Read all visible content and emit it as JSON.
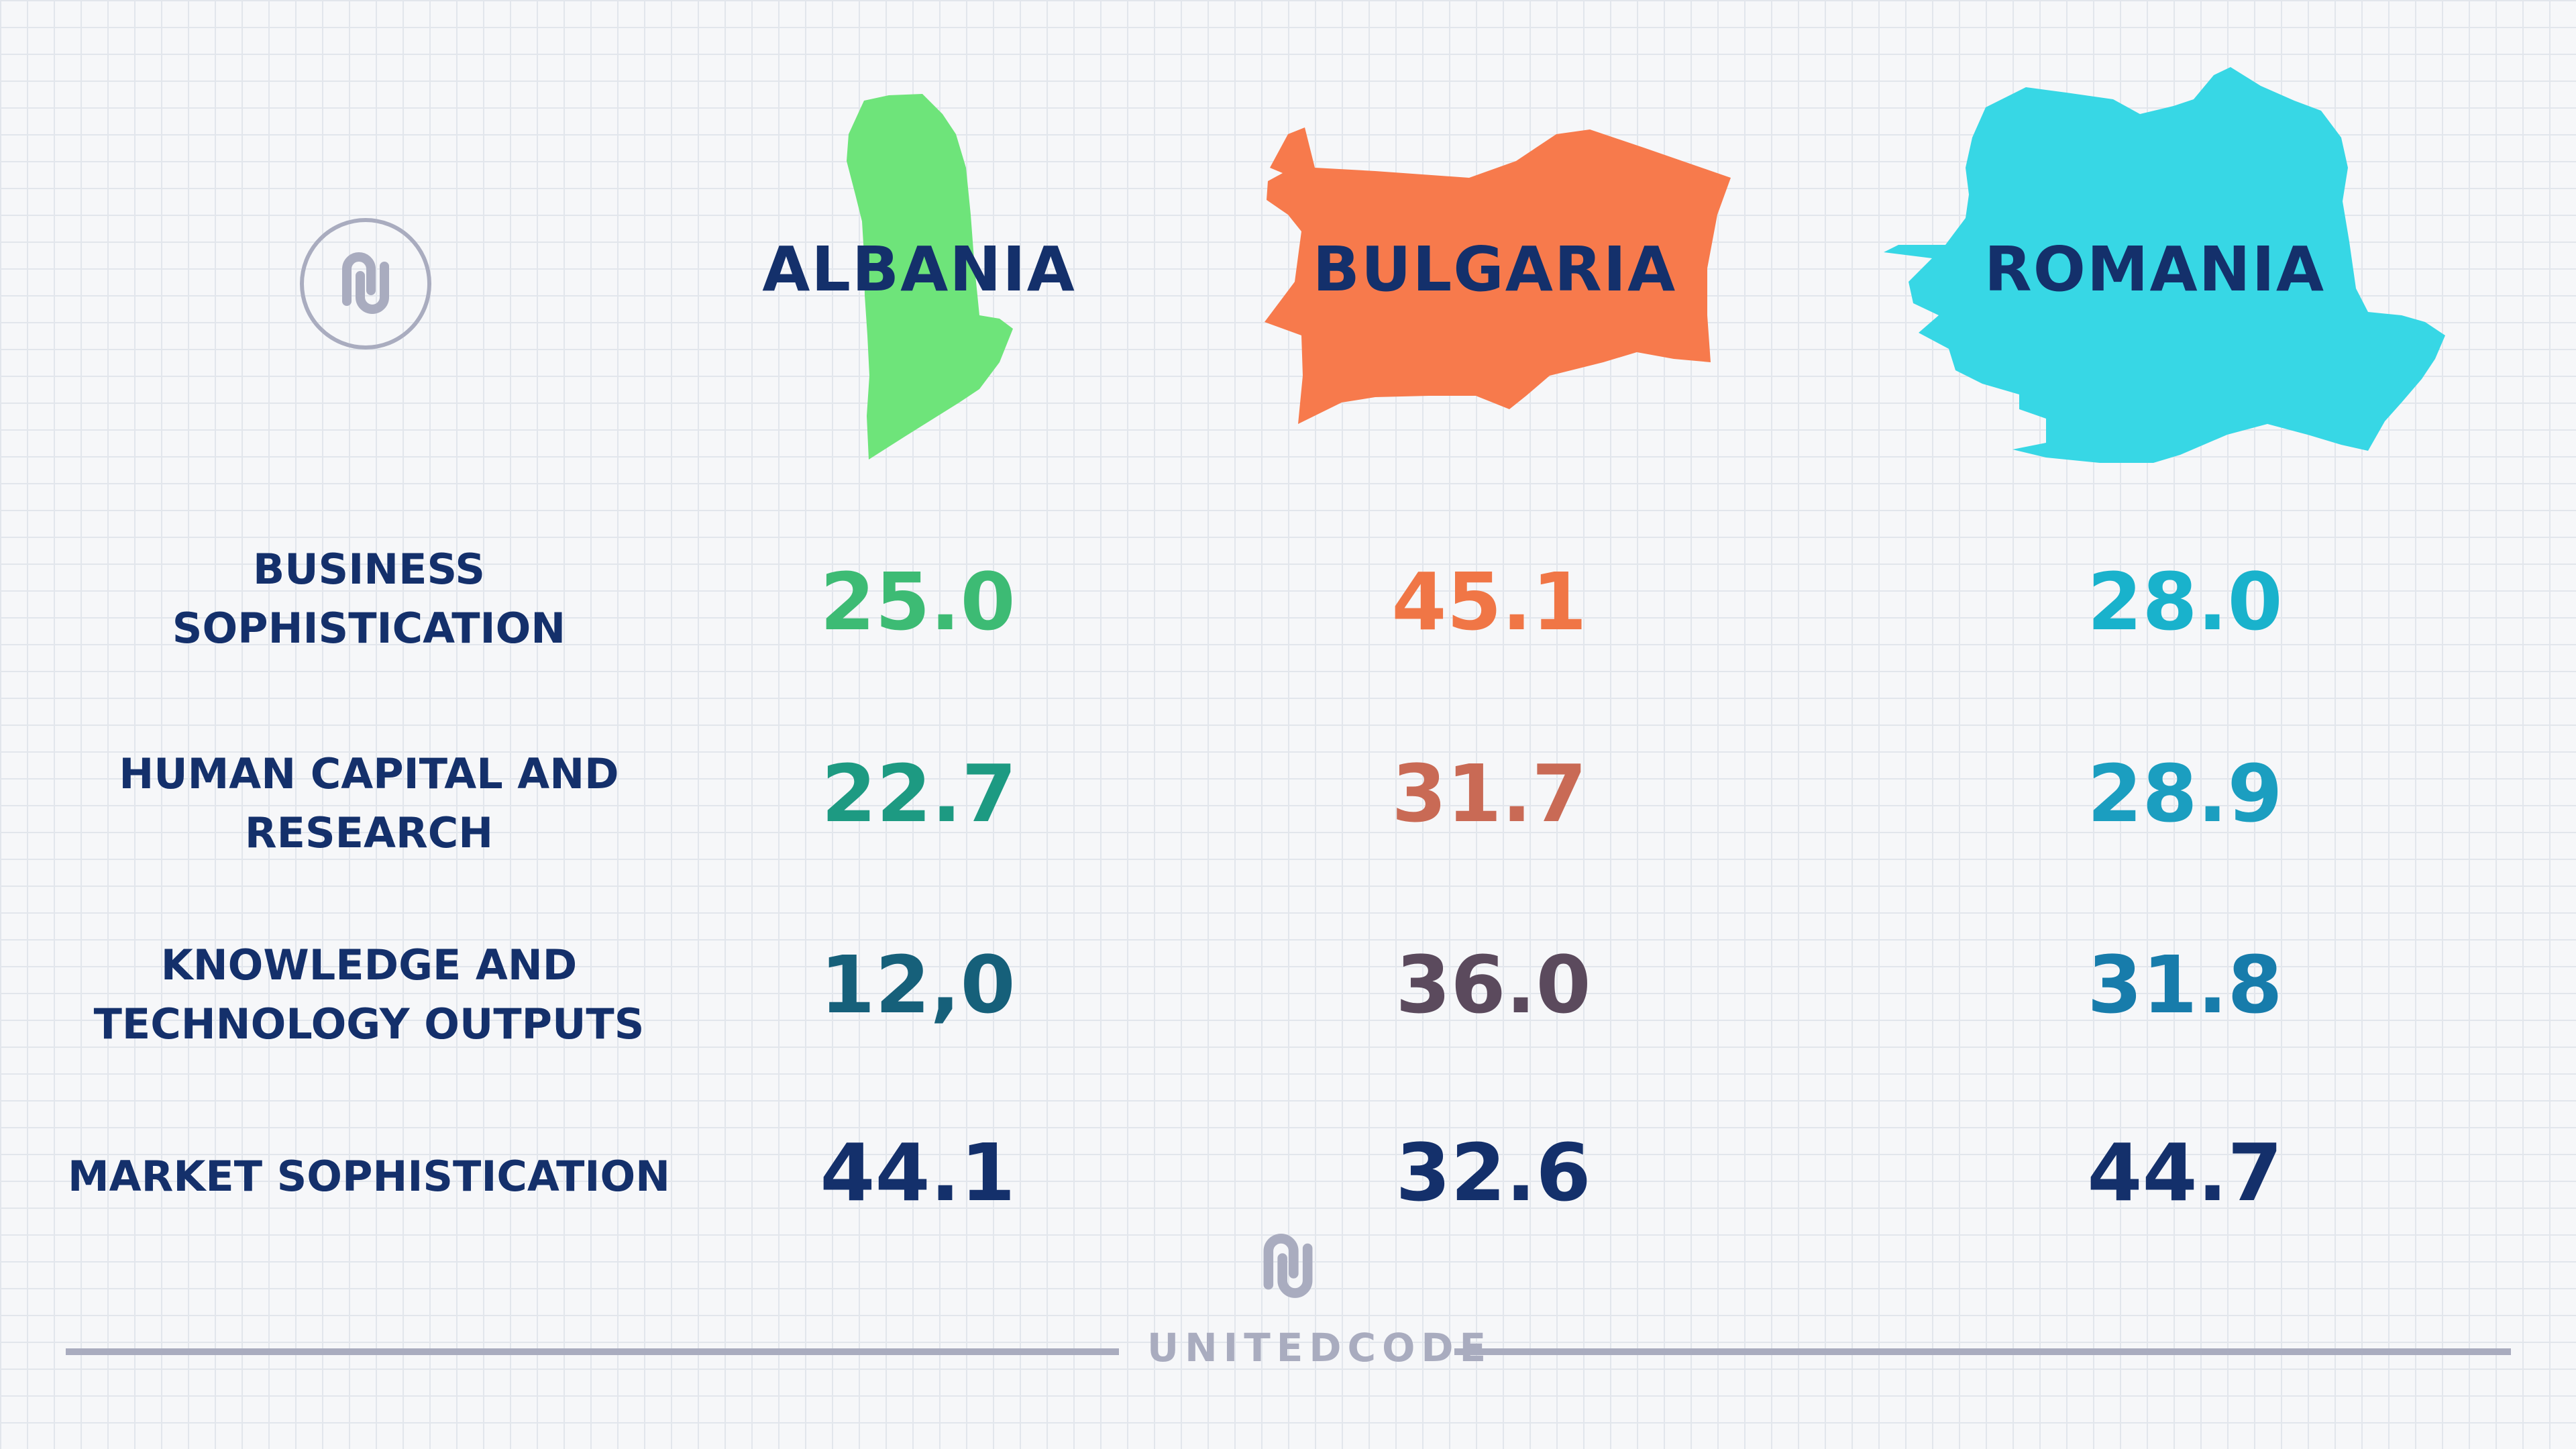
{
  "colors": {
    "albania": "#6ee47a",
    "bulgaria": "#f77a4c",
    "romania": "#37d7e5",
    "label": "#14306b",
    "brand": "#a9acbf"
  },
  "chart_data": {
    "type": "table",
    "columns": [
      "ALBANIA",
      "BULGARIA",
      "ROMANIA"
    ],
    "rows": [
      {
        "label": "BUSINESS\nSOPHISTICATION",
        "values": [
          "25.0",
          "45.1",
          "28.0"
        ],
        "colors": [
          "#3dbb74",
          "#f07646",
          "#19b2cc"
        ]
      },
      {
        "label": "HUMAN CAPITAL AND\nRESEARCH",
        "values": [
          "22.7",
          "31.7",
          "28.9"
        ],
        "colors": [
          "#1d9a82",
          "#c96a55",
          "#1b9ec0"
        ]
      },
      {
        "label": "KNOWLEDGE AND\nTECHNOLOGY OUTPUTS",
        "values": [
          "12,0",
          "36.0",
          "31.8"
        ],
        "colors": [
          "#16607a",
          "#5b4a5d",
          "#177cab"
        ]
      },
      {
        "label": "MARKET SOPHISTICATION",
        "values": [
          "44.1",
          "32.6",
          "44.7"
        ],
        "colors": [
          "#14306b",
          "#14306b",
          "#14306b"
        ]
      }
    ]
  },
  "footer": {
    "brand": "UNITEDCODE"
  },
  "icons": {
    "logo": "unitedcode-logo-icon"
  }
}
